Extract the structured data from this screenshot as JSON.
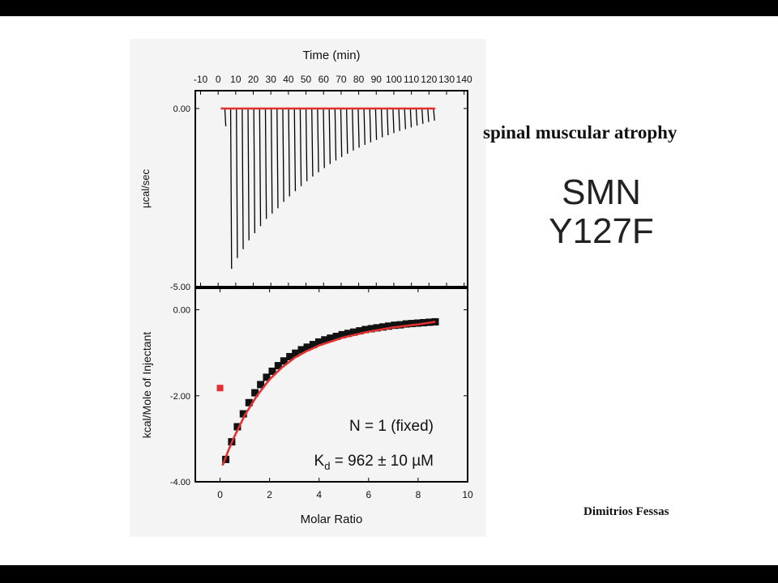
{
  "slide": {
    "title": "spinal muscular atrophy",
    "construct_line1": "SMN",
    "construct_line2": "Y127F",
    "author": "Dimitrios Fessas"
  },
  "colors": {
    "frame": "#000000",
    "fit": "#e03030",
    "points": "#111111",
    "outlier": "#e03030",
    "panel": "#f4f4f4"
  },
  "chart_data": [
    {
      "type": "line",
      "panel": "raw-thermogram",
      "xlabel": "Time (min)",
      "ylabel": "µcal/sec",
      "xlim": [
        -13,
        142
      ],
      "ylim": [
        -5.0,
        0.5
      ],
      "x_ticks": [
        -10,
        0,
        10,
        20,
        30,
        40,
        50,
        60,
        70,
        80,
        90,
        100,
        110,
        120,
        130,
        140
      ],
      "x_tick_labels": [
        "-10",
        "0",
        "10",
        "20",
        "30",
        "40",
        "50",
        "60",
        "70",
        "80",
        "90",
        "100",
        "110",
        "120",
        "130",
        "140"
      ],
      "y_ticks": [
        0.0,
        -5.0
      ],
      "y_tick_labels": [
        "0.00",
        "-5.00"
      ],
      "baseline": 0.0,
      "injection_times": [
        3.8,
        7.1,
        10.4,
        13.7,
        17.0,
        20.3,
        23.6,
        26.9,
        30.2,
        33.5,
        36.8,
        40.1,
        43.4,
        46.7,
        50.0,
        53.3,
        56.6,
        59.9,
        63.2,
        66.5,
        69.8,
        73.1,
        76.4,
        79.7,
        83.0,
        86.3,
        89.6,
        92.9,
        96.2,
        99.5,
        102.8,
        106.1,
        109.4,
        112.7,
        116.0,
        119.3,
        122.6
      ],
      "peak_values": [
        -0.5,
        -4.5,
        -4.2,
        -3.95,
        -3.7,
        -3.5,
        -3.3,
        -3.1,
        -2.95,
        -2.8,
        -2.62,
        -2.47,
        -2.32,
        -2.18,
        -2.04,
        -1.91,
        -1.79,
        -1.67,
        -1.56,
        -1.46,
        -1.36,
        -1.27,
        -1.18,
        -1.1,
        -1.02,
        -0.95,
        -0.88,
        -0.81,
        -0.75,
        -0.69,
        -0.63,
        -0.58,
        -0.53,
        -0.48,
        -0.43,
        -0.38,
        -0.34
      ]
    },
    {
      "type": "scatter",
      "panel": "binding-isotherm",
      "xlabel": "Molar Ratio",
      "ylabel": "kcal/Mole of Injectant",
      "xlim": [
        -1,
        10
      ],
      "ylim": [
        -4.0,
        0.5
      ],
      "x_ticks": [
        0,
        2,
        4,
        6,
        8,
        10
      ],
      "x_tick_labels": [
        "0",
        "2",
        "4",
        "6",
        "8",
        "10"
      ],
      "y_ticks": [
        0.0,
        -2.0,
        -4.0
      ],
      "y_tick_labels": [
        "0.00",
        "-2.00",
        "-4.00"
      ],
      "x": [
        0.23,
        0.47,
        0.7,
        0.94,
        1.17,
        1.41,
        1.64,
        1.88,
        2.11,
        2.35,
        2.58,
        2.82,
        3.05,
        3.29,
        3.52,
        3.76,
        3.99,
        4.23,
        4.46,
        4.7,
        4.93,
        5.17,
        5.4,
        5.64,
        5.87,
        6.11,
        6.34,
        6.58,
        6.81,
        7.05,
        7.28,
        7.52,
        7.75,
        7.99,
        8.22,
        8.46,
        8.69
      ],
      "y": [
        -3.48,
        -3.07,
        -2.72,
        -2.42,
        -2.16,
        -1.93,
        -1.74,
        -1.57,
        -1.43,
        -1.3,
        -1.19,
        -1.09,
        -1.01,
        -0.93,
        -0.87,
        -0.81,
        -0.75,
        -0.7,
        -0.66,
        -0.62,
        -0.58,
        -0.55,
        -0.52,
        -0.49,
        -0.46,
        -0.44,
        -0.42,
        -0.4,
        -0.38,
        -0.36,
        -0.35,
        -0.33,
        -0.32,
        -0.31,
        -0.3,
        -0.29,
        -0.28
      ],
      "excluded_point": {
        "x": 0.0,
        "y": -1.82
      },
      "fit_line": {
        "x": [
          0.1,
          0.35,
          0.6,
          1.0,
          1.5,
          2.0,
          2.5,
          3.0,
          3.5,
          4.0,
          5.0,
          6.0,
          7.0,
          8.0,
          8.7
        ],
        "y": [
          -3.62,
          -3.25,
          -2.92,
          -2.45,
          -1.99,
          -1.62,
          -1.34,
          -1.12,
          -0.96,
          -0.83,
          -0.64,
          -0.51,
          -0.41,
          -0.34,
          -0.28
        ]
      },
      "annotation_n": "N = 1 (fixed)",
      "annotation_kd_prefix": "K",
      "annotation_kd_sub": "d",
      "annotation_kd_suffix": " = 962 ± 10 µM"
    }
  ]
}
